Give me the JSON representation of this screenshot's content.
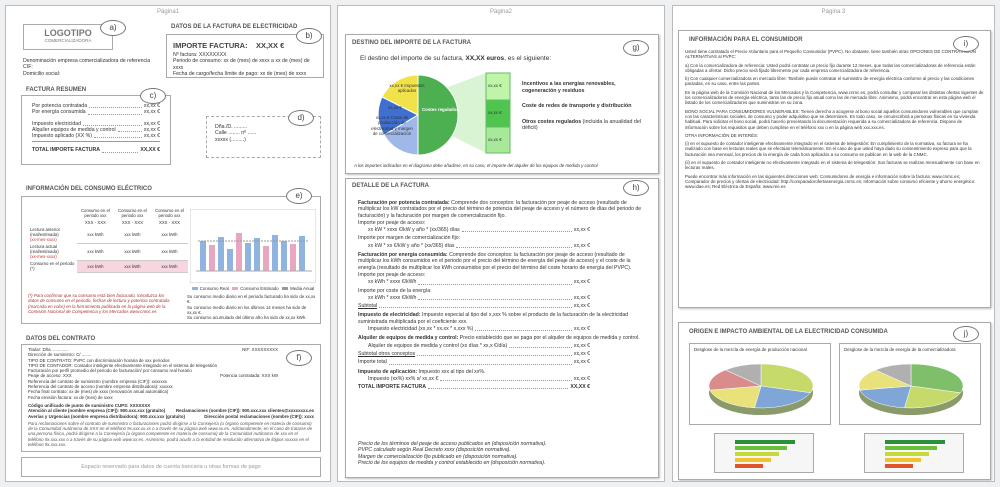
{
  "page1": {
    "header": "Página1",
    "logo": {
      "title": "LOGOTIPO",
      "subtitle": "COMERCIALIZADORA",
      "marker": "a)"
    },
    "invoice_data": {
      "title": "DATOS DE LA FACTURA DE ELECTRICIDAD",
      "marker": "b)",
      "amount_label": "IMPORTE FACTURA:",
      "amount": "XX,XX €",
      "lines": [
        "Nº factura: XXXXXXXX",
        "Periodo de consumo: xx de (mes) de xxxx a xx de (mes) de xxxx",
        "Fecha de cargo/fecha límite de pago: xx de (mes) de xxxx"
      ]
    },
    "company": [
      "Denominación empresa comercializadora de referencia",
      "CIF:",
      "Domicilio social:"
    ],
    "summary": {
      "title": "FACTURA RESUMEN",
      "marker": "c)",
      "rows": [
        [
          "Por potencia contratada",
          "xx,xx €"
        ],
        [
          "Por energía consumida",
          "xx,xx €"
        ]
      ],
      "rows2": [
        [
          "Impuesto electricidad",
          "xx,xx €"
        ],
        [
          "Alquiler equipos de medida y control",
          "xx,xx €"
        ],
        [
          "Impuesto aplicado (XX %)",
          "xx,xx €"
        ]
      ],
      "total": [
        [
          "TOTAL IMPORTE FACTURA",
          "XX,XX €"
        ]
      ]
    },
    "address": {
      "marker": "d)",
      "lines": [
        "Dña./D. .........",
        "Calle ........ nº ......",
        "xxxxx (.........)"
      ]
    },
    "consumption": {
      "title": "INFORMACIÓN DEL CONSUMO ELÉCTRICO",
      "marker": "e)",
      "columns": [
        "Consumo en el periodo xxx",
        "Consumo en el periodo xxx",
        "Consumo en el periodo xxx"
      ],
      "ranges": [
        "XXX - XXX",
        "XXX - XXX",
        "XXX - XXX"
      ],
      "rows": [
        {
          "label": "Lectura anterior (real/estimada)",
          "date": "(xx-mes-xxxx)",
          "values": [
            "xxx kWh",
            "xxx kWh",
            "xxx kWh"
          ]
        },
        {
          "label": "Lectura actual (real/estimada)",
          "date": "(xx-mes-xxxx)",
          "values": [
            "xxx kWh",
            "xxx kWh",
            "xxx kWh"
          ]
        },
        {
          "label": "Consumo en el periodo (*)",
          "values": [
            "xxx kWh",
            "xxx kWh",
            "xxx kWh"
          ]
        }
      ],
      "legend": [
        "Consumo Real",
        "Consumo Estimado",
        "Media Anual"
      ],
      "note": "(*) Para confirmar que su consumo está bien facturado, introduzca los datos de consumo en el periodo, fechas de lectura y potencia contratada (marcada en color) en la herramienta publicada en la página web de la Comisión Nacional de Competencia y los Mercados www.cnmc.es",
      "averages": [
        "Su consumo medio diario en el periodo facturado ha sido de xx,xx €.",
        "Su consumo medio diario en los últimos 14 meses ha sido de xx,xx €.",
        "Su consumo acumulado del último año ha sido de xx,xx kWh."
      ]
    },
    "contract": {
      "title": "DATOS DEL CONTRATO",
      "marker": "f)",
      "lines": [
        [
          "Titular: Dña. .............",
          "NIF: XXXXXXXXX"
        ],
        [
          "Dirección de suministro: C/ ........"
        ],
        [
          "TIPO DE CONTRATO: PVPC con discriminación horaria de xxx periodos"
        ],
        [
          "TIPO DE CONTADOR: Contador inteligente efectivamente integrado en el sistema de telegestión"
        ],
        [
          "Facturación por perfil promedio del periodo de facturación/ por consumo real horario"
        ],
        [
          "Peaje de acceso: XXX",
          "Potencia contratada: XXX kW"
        ],
        [
          "Referencia del contrato de suministro (nombre empresa (CIF)): xxxxxxx"
        ],
        [
          "Referencia del contrato de acceso (nombre empresa distribuidora): xxxxxx"
        ],
        [
          "Fecha final contrato: xx de (mes) de xxxx (renovación anual automática)"
        ],
        [
          "Fecha emisión factura: xx de (mes) de xxxx"
        ]
      ],
      "contacts": [
        [
          "Código unificado de punto de suministro CUPS: XXXXXXX"
        ],
        [
          "Atención al cliente (nombre empresa (CIF)): 900.xxx.xxx (gratuito)",
          "Reclamaciones (nombre (CIF)): 900.xxx.xxx  clientes@xxxxxxxx.es"
        ],
        [
          "Averías y Urgencias (nombre empresa distribuidora): 900.xxx.xxx (gratuito)",
          "Dirección postal reclamaciones (nombre (CIF)): xxxx"
        ]
      ],
      "paragraph": "Para reclamaciones sobre el contrato de suministro o facturaciones podrá dirigirse a la Consejería (u órgano competente en materia de consumo) de la Comunidad Autónoma de XXX en el teléfono 9x.xxx.xx.xx o a través de su página web www.xx.es. Adicionalmente, en el caso de tratarse de una persona física, podrá dirigirse a la Consejería (u órgano competente en materia de consumo) de la Comunidad Autónoma de xxx en el teléfono 9x.xxx.xxx o a través de su página web www.xx.es. Asimismo, podrá acudir a la entidad de resolución alternativa de litigios xxxxxx en el teléfono 9x.xxx.xxx.",
      "bank": "Espacio reservado para datos de cuenta bancaria u otras formas de pago"
    }
  },
  "page2": {
    "header": "Página2",
    "destination": {
      "title": "DESTINO DEL IMPORTE DE LA FACTURA",
      "marker": "g)",
      "intro_prefix": "El destino del importe de su factura, ",
      "intro_amount": "XX,XX euros",
      "intro_suffix": ", es el siguiente:",
      "pie_labels": [
        "xx,xx € Impuestos aplicados",
        "xx,xx €",
        "Costes regulados",
        "xx,xx € Coste de producción de electricidad y margen de comercialización"
      ],
      "bar_labels": [
        "xx,xx €",
        "xx,xx €",
        "xx,xx €"
      ],
      "items": [
        "Incentivos a las energías renovables, cogeneración y residuos",
        "Coste de redes de transporte y distribución",
        "Otros costes regulados"
      ],
      "items_note": "(incluida la anualidad del déficit)",
      "note": "A los importes indicados en el diagrama debe añadirse, en su caso, el importe del alquiler de los equipos de medida y control"
    },
    "detail": {
      "title": "DETALLE DE LA FACTURA",
      "marker": "h)",
      "blocks": [
        {
          "term": "Facturación por potencia contratada:",
          "text": " Comprende dos conceptos: la facturación por peaje de acceso (resultado de multiplicar los kW contratados por el precio del término de potencia del peaje de acceso y el número de días del periodo de facturación) y la facturación por margen de comercialización fijo."
        },
        {
          "line": "Importe por peaje de acceso:"
        },
        {
          "label": "xx kW * xxxx €/kW y año * (xx/365) días",
          "value": "xx,xx €"
        },
        {
          "line": "Importe por margen de comercialización fijo:"
        },
        {
          "label": "xx kW * xx €/kW y año * (xx/365) días",
          "value": "xx,xx €"
        },
        {
          "term": "Facturación por energía consumida:",
          "text": " Comprende dos conceptos: la facturación por peaje de acceso (resultado de multiplicar los kWh consumidos en el periodo por el precio del término de energía del peaje de acceso) y el coste de la energía (resultado de multiplicar los kWh consumidos por el precio del término del coste horario de energía del PVPC)."
        },
        {
          "line": "Importe por peaje de acceso:"
        },
        {
          "label": "xx kWh * xxxx €/kWh",
          "value": "xx,xx €"
        },
        {
          "line": "Importe por coste de la energía:"
        },
        {
          "label": "xx kWh * xxxx €/kWh",
          "value": "xx,xx €"
        },
        {
          "subtotal": "Subtotal",
          "value": "xx,xx €"
        },
        {
          "term": "Impuesto de electricidad:",
          "text": " Impuesto especial al tipo del x,xxx % sobre el producto de la facturación de la electricidad suministrada multiplicada por el coeficiente xxx."
        },
        {
          "label": "Impuesto electricidad (xx,xx * xx,xx * x,xxx %)",
          "value": "xx,xx €"
        },
        {
          "term": "Alquiler de equipos de medida y control:",
          "text": " Precio establecido que se paga por el alquiler de equipos de medida y control."
        },
        {
          "label": "Alquiler de equipos de medida y control (xx días * xx,x €/día)",
          "value": "xx,xx €"
        },
        {
          "subtotal": "Subtotal otros conceptos",
          "value": "xx,xx €"
        },
        {
          "label": "Importe total",
          "value": "xx,xx €"
        },
        {
          "term": "Impuesto de aplicación:",
          "text": " Impuesto xxx al tipo del xx%."
        },
        {
          "label": "Impuesto (xx%)   xx% s/ xx,xx €",
          "value": "xx,xx €"
        },
        {
          "total": "TOTAL IMPORTE FACTURA",
          "value": "XX,XX €"
        }
      ],
      "notes": [
        "Precio de los términos del peaje de acceso publicados en (disposición normativa).",
        "PVPC calculado según Real Decreto xxxx (disposición normativa).",
        "Margen de comercialización fijo publicado en (disposición normativa).",
        "Precio de los equipos de medida y control establecido en (disposición normativa)."
      ]
    }
  },
  "page3": {
    "header": "Página 3",
    "consumer": {
      "title": "INFORMACIÓN PARA EL CONSUMIDOR",
      "marker": "i)",
      "paragraphs": [
        "Usted tiene contratado el Precio Voluntario para el Pequeño Consumidor (PVPC). No obstante, tiene también otras OPCIONES DE CONTRATACIÓN ALTERNATIVAS al PVPC:",
        "a) Con la comercializadora de referencia: Usted podrá contratar un precio fijo durante 12 meses, que todas las comercializadoras de referencia están obligadas a ofertar. Dicho precio será fijado libremente por cada empresa comercializadora de referencia.",
        "b) Con cualquier comercializadora en mercado libre: También puede contratar el suministro de energía eléctrica conforme al precio y las condiciones pactadas, en su caso, entre las partes.",
        "En la página web de la Comisión Nacional de los Mercados y la Competencia, www.cnmc.es, podrá consultar y comparar las distintas ofertas vigentes de los comercializadores de energía eléctrica, tanto las de precio fijo anual como las de mercado libre. Asimismo, podrá encontrar en esta página web el listado de los comercializadores que suministran en su zona.",
        "BONO SOCIAL PARA CONSUMIDORES VULNERABLES: Tienen derecho a acogerse al bono social aquellos consumidores vulnerables que cumplan con las características sociales, de consumo y poder adquisitivo que se determinen. En todo caso, se circunscribirá a personas físicas en su vivienda habitual. Para solicitar el bono social, podrá hacerlo presentando la documentación requerida a su comercializadora de referencia. Dispone de información sobre los requisitos que deben cumplirse en el teléfono xxx o en la página web xxx.xxx.es.",
        "OTRA INFORMACIÓN DE INTERÉS:",
        "(i) en el supuesto de contador inteligente efectivamente integrado en el sistema de telegestión: En cumplimiento de la normativa, su factura se ha realizado con base en lecturas reales que se efectúan telemáticamente. En el caso de que usted haya dado su consentimiento expreso para que la facturación sea mensual, los precios de la energía de cada hora aplicados a su consumo se publican en la web de la CNMC.",
        "(ii) en el supuesto de contador inteligente no efectivamente integrado en el sistema de telegestión: Sus facturas se realizan mensualmente con base en lecturas reales.",
        "Puede encontrar más información en las siguientes direcciones web: Consumidores de energía e información sobre la factura: www.cnmc.es; Comparador de precios y ofertas de electricidad: http://comparadorofertasenergia.cnmc.es; Información sobre consumo eficiente y ahorro energético: www.idae.es; Red Eléctrica de España: www.ree.es"
      ]
    },
    "origin": {
      "title": "ORIGEN E IMPACTO AMBIENTAL DE LA ELECTRICIDAD CONSUMIDA",
      "marker": "j)",
      "charts": [
        "Desglose de la mezcla de energía de producción nacional",
        "Desglose de la mezcla de energía de la comercializadora"
      ]
    }
  }
}
